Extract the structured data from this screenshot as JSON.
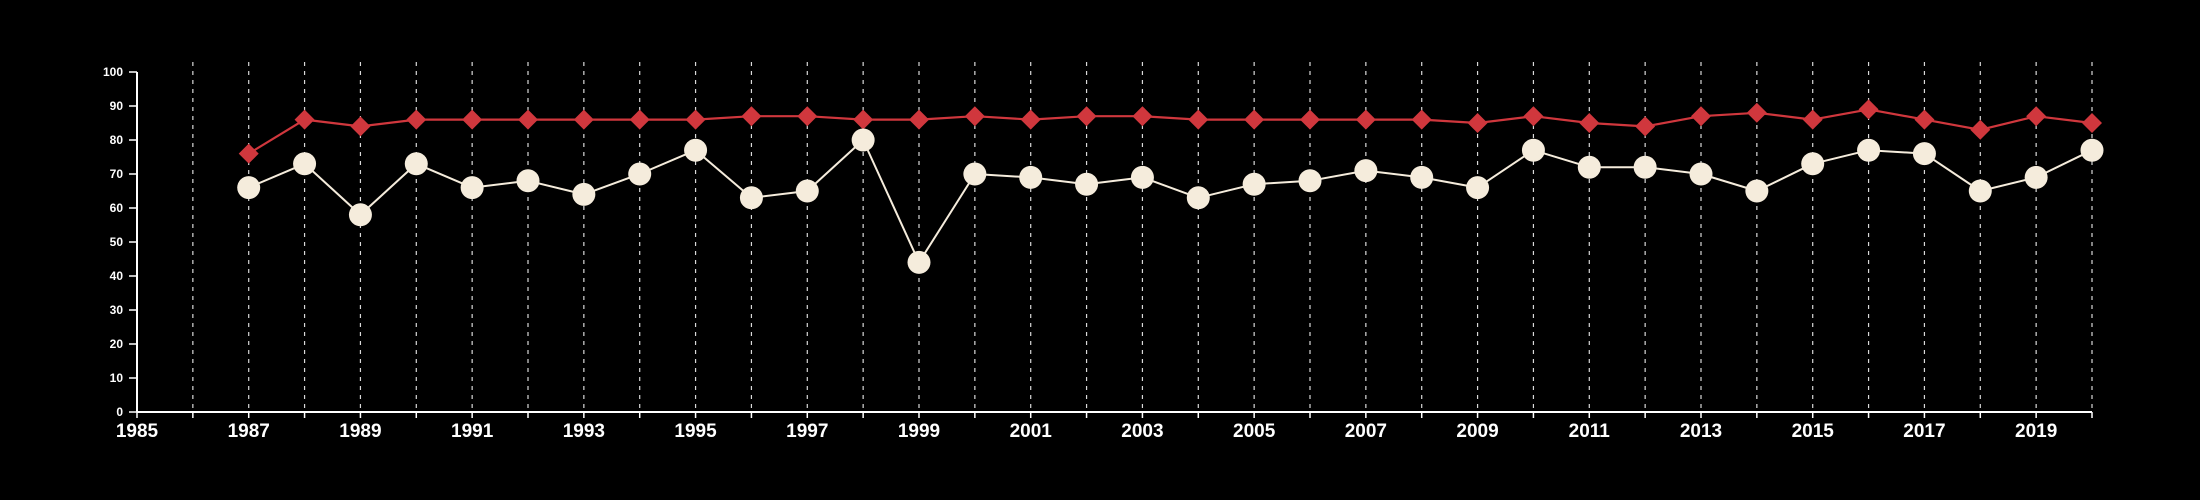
{
  "chart_data": {
    "type": "line",
    "title": "",
    "xlabel": "",
    "ylabel": "",
    "xlim": [
      1985,
      2020
    ],
    "ylim": [
      0,
      100
    ],
    "y_ticks": [
      0,
      10,
      20,
      30,
      40,
      50,
      60,
      70,
      80,
      90,
      100
    ],
    "x_ticks": [
      1985,
      1987,
      1989,
      1991,
      1993,
      1995,
      1997,
      1999,
      2001,
      2003,
      2005,
      2007,
      2009,
      2011,
      2013,
      2015,
      2017,
      2019
    ],
    "vertical_gridlines": "dashed, every year",
    "horizontal_gridlines": false,
    "legend": "none",
    "series": [
      {
        "marker": "diamond",
        "color": "#d0373d",
        "x": [
          1987,
          1988,
          1989,
          1990,
          1991,
          1992,
          1993,
          1994,
          1995,
          1996,
          1997,
          1998,
          1999,
          2000,
          2001,
          2002,
          2003,
          2004,
          2005,
          2006,
          2007,
          2008,
          2009,
          2010,
          2011,
          2012,
          2013,
          2014,
          2015,
          2016,
          2017,
          2018,
          2019,
          2020
        ],
        "values": [
          76,
          86,
          84,
          86,
          86,
          86,
          86,
          86,
          86,
          87,
          87,
          86,
          86,
          87,
          86,
          87,
          87,
          86,
          86,
          86,
          86,
          86,
          85,
          87,
          85,
          84,
          87,
          88,
          86,
          89,
          86,
          83,
          87,
          85
        ]
      },
      {
        "marker": "circle",
        "color": "#f5ecdc",
        "x": [
          1987,
          1988,
          1989,
          1990,
          1991,
          1992,
          1993,
          1994,
          1995,
          1996,
          1997,
          1998,
          1999,
          2000,
          2001,
          2002,
          2003,
          2004,
          2005,
          2006,
          2007,
          2008,
          2009,
          2010,
          2011,
          2012,
          2013,
          2014,
          2015,
          2016,
          2017,
          2018,
          2019,
          2020
        ],
        "values": [
          66,
          73,
          58,
          73,
          66,
          68,
          64,
          70,
          77,
          63,
          65,
          80,
          44,
          70,
          69,
          67,
          69,
          63,
          67,
          68,
          71,
          69,
          66,
          77,
          72,
          72,
          70,
          65,
          73,
          77,
          76,
          65,
          69,
          77
        ]
      }
    ]
  }
}
